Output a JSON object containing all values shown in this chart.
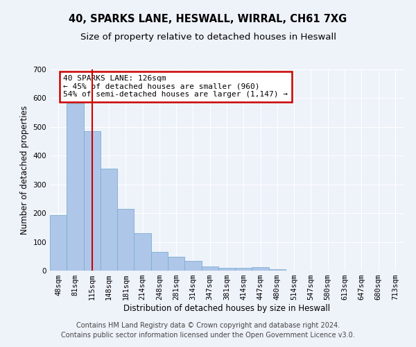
{
  "title": "40, SPARKS LANE, HESWALL, WIRRAL, CH61 7XG",
  "subtitle": "Size of property relative to detached houses in Heswall",
  "xlabel": "Distribution of detached houses by size in Heswall",
  "ylabel": "Number of detached properties",
  "categories": [
    "48sqm",
    "81sqm",
    "115sqm",
    "148sqm",
    "181sqm",
    "214sqm",
    "248sqm",
    "281sqm",
    "314sqm",
    "347sqm",
    "381sqm",
    "414sqm",
    "447sqm",
    "480sqm",
    "514sqm",
    "547sqm",
    "580sqm",
    "613sqm",
    "647sqm",
    "680sqm",
    "713sqm"
  ],
  "values": [
    193,
    582,
    485,
    354,
    215,
    130,
    64,
    48,
    35,
    15,
    10,
    9,
    11,
    6,
    0,
    0,
    0,
    0,
    0,
    0,
    0
  ],
  "bar_color": "#aec6e8",
  "bar_edgecolor": "#7aafd4",
  "property_line_x": 2.0,
  "annotation_text": "40 SPARKS LANE: 126sqm\n← 45% of detached houses are smaller (960)\n54% of semi-detached houses are larger (1,147) →",
  "annotation_box_color": "#ffffff",
  "annotation_box_edgecolor": "#cc0000",
  "vline_color": "#cc0000",
  "footer_line1": "Contains HM Land Registry data © Crown copyright and database right 2024.",
  "footer_line2": "Contains public sector information licensed under the Open Government Licence v3.0.",
  "background_color": "#eef2f9",
  "axes_background_color": "#eef2f9",
  "grid_color": "#ffffff",
  "ylim": [
    0,
    700
  ],
  "title_fontsize": 10.5,
  "subtitle_fontsize": 9.5,
  "axis_label_fontsize": 8.5,
  "tick_fontsize": 7.5,
  "annotation_fontsize": 8,
  "footer_fontsize": 7
}
